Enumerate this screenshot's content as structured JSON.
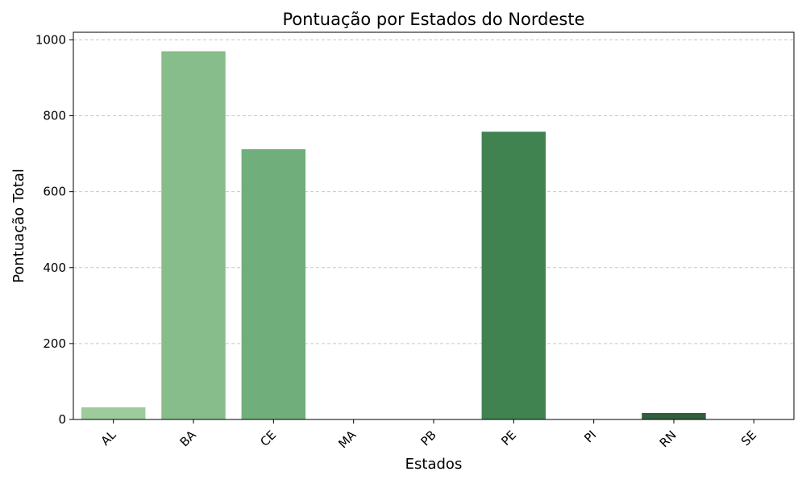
{
  "chart_data": {
    "type": "bar",
    "title": "Pontuação por Estados do Nordeste",
    "xlabel": "Estados",
    "ylabel": "Pontuação Total",
    "categories": [
      "AL",
      "BA",
      "CE",
      "MA",
      "PB",
      "PE",
      "PI",
      "RN",
      "SE"
    ],
    "values": [
      32,
      970,
      712,
      0,
      0,
      758,
      0,
      17,
      0
    ],
    "colors": [
      "#9dcb9b",
      "#87bd8a",
      "#70af7b",
      "#59a16c",
      "#4a925e",
      "#418251",
      "#397244",
      "#315f3b",
      "#2b5133"
    ],
    "ylim": [
      0,
      1020
    ],
    "yticks": [
      0,
      200,
      400,
      600,
      800,
      1000
    ],
    "grid": "horizontal-dashed",
    "xtick_rotation": -45
  }
}
